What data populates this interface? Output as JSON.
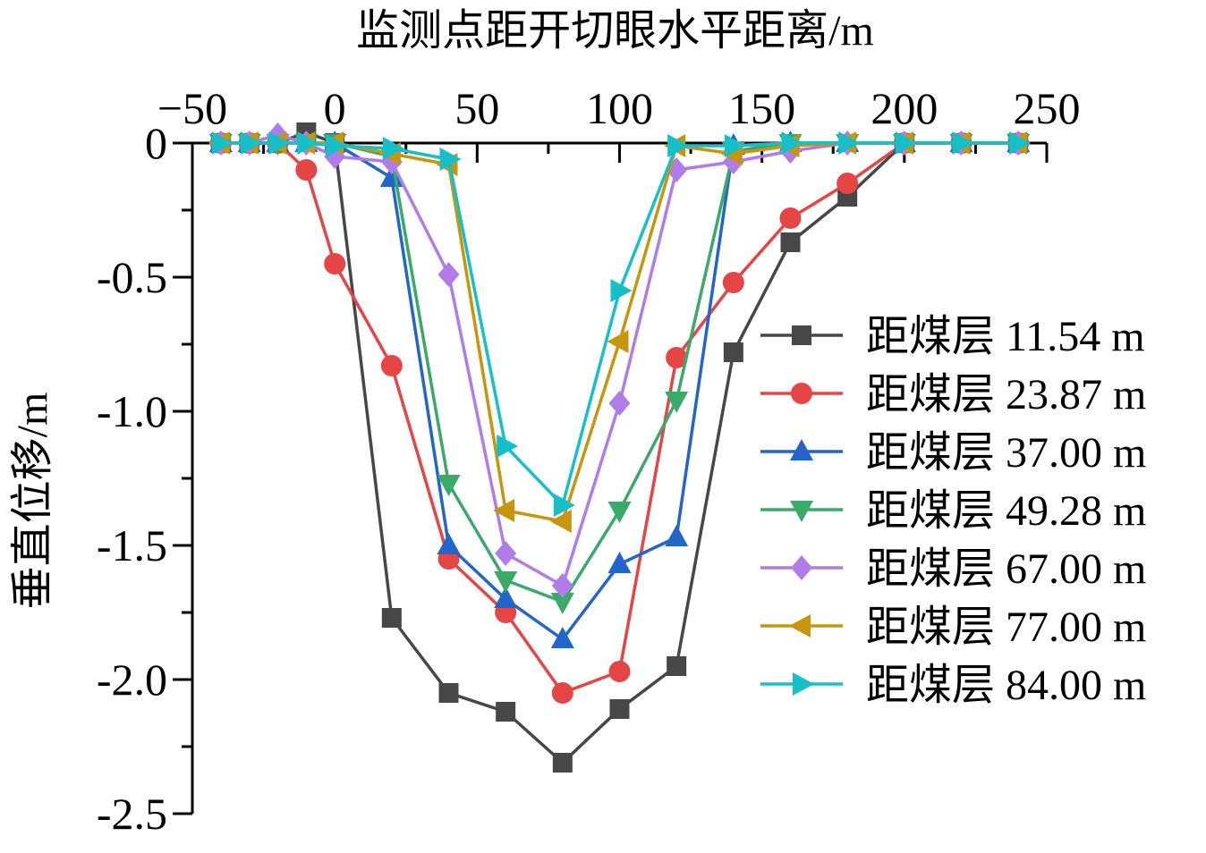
{
  "chart_data": {
    "type": "line",
    "xlabel": "监测点距开切眼水平距离/m",
    "ylabel": "垂直位移/m",
    "x_axis_position": "top",
    "xlim": [
      -50,
      250
    ],
    "ylim": [
      -2.5,
      0
    ],
    "x_ticks": [
      -50,
      0,
      50,
      100,
      150,
      200,
      250
    ],
    "y_ticks": [
      0,
      -0.5,
      -1.0,
      -1.5,
      -2.0,
      -2.5
    ],
    "x_tick_labels": [
      "−50",
      "0",
      "50",
      "100",
      "150",
      "200",
      "250"
    ],
    "y_tick_labels": [
      "0",
      "-0.5",
      "-1.0",
      "-1.5",
      "-2.0",
      "-2.5"
    ],
    "legend_position": "right",
    "grid": false,
    "series": [
      {
        "name": "距煤层 11.54 m",
        "color": "#474747",
        "marker": "square",
        "points": [
          [
            -40,
            0
          ],
          [
            -30,
            0
          ],
          [
            -20,
            0
          ],
          [
            -10,
            0.04
          ],
          [
            0,
            0
          ],
          [
            20,
            -1.77
          ],
          [
            40,
            -2.05
          ],
          [
            60,
            -2.12
          ],
          [
            80,
            -2.31
          ],
          [
            100,
            -2.11
          ],
          [
            120,
            -1.95
          ],
          [
            140,
            -0.78
          ],
          [
            160,
            -0.37
          ],
          [
            180,
            -0.2
          ],
          [
            200,
            0
          ],
          [
            220,
            0
          ],
          [
            240,
            0
          ]
        ]
      },
      {
        "name": "距煤层 23.87 m",
        "color": "#e64545",
        "marker": "circle",
        "points": [
          [
            -40,
            0
          ],
          [
            -30,
            0
          ],
          [
            -20,
            0
          ],
          [
            -10,
            -0.1
          ],
          [
            0,
            -0.45
          ],
          [
            20,
            -0.83
          ],
          [
            40,
            -1.55
          ],
          [
            60,
            -1.75
          ],
          [
            80,
            -2.05
          ],
          [
            100,
            -1.97
          ],
          [
            120,
            -0.8
          ],
          [
            140,
            -0.52
          ],
          [
            160,
            -0.28
          ],
          [
            180,
            -0.15
          ],
          [
            200,
            0
          ],
          [
            220,
            0
          ],
          [
            240,
            0
          ]
        ]
      },
      {
        "name": "距煤层 37.00 m",
        "color": "#2266cc",
        "marker": "triangle-up",
        "points": [
          [
            -40,
            0
          ],
          [
            -30,
            0
          ],
          [
            -20,
            0
          ],
          [
            -10,
            0
          ],
          [
            0,
            0
          ],
          [
            20,
            -0.13
          ],
          [
            40,
            -1.5
          ],
          [
            60,
            -1.7
          ],
          [
            80,
            -1.85
          ],
          [
            100,
            -1.57
          ],
          [
            120,
            -1.47
          ],
          [
            140,
            -0.01
          ],
          [
            160,
            0
          ],
          [
            180,
            0
          ],
          [
            200,
            0
          ],
          [
            220,
            0
          ],
          [
            240,
            0
          ]
        ]
      },
      {
        "name": "距煤层 49.28 m",
        "color": "#3aaa6a",
        "marker": "triangle-down",
        "points": [
          [
            -40,
            0
          ],
          [
            -30,
            0
          ],
          [
            -20,
            0
          ],
          [
            -10,
            0
          ],
          [
            0,
            0
          ],
          [
            20,
            -0.05
          ],
          [
            40,
            -1.27
          ],
          [
            60,
            -1.63
          ],
          [
            80,
            -1.71
          ],
          [
            100,
            -1.37
          ],
          [
            120,
            -0.96
          ],
          [
            140,
            -0.03
          ],
          [
            160,
            0
          ],
          [
            180,
            0
          ],
          [
            200,
            0
          ],
          [
            220,
            0
          ],
          [
            240,
            0
          ]
        ]
      },
      {
        "name": "距煤层 67.00 m",
        "color": "#b07de8",
        "marker": "diamond",
        "points": [
          [
            -40,
            0
          ],
          [
            -30,
            0
          ],
          [
            -20,
            0.03
          ],
          [
            -10,
            0
          ],
          [
            0,
            -0.05
          ],
          [
            20,
            -0.07
          ],
          [
            40,
            -0.49
          ],
          [
            60,
            -1.53
          ],
          [
            80,
            -1.65
          ],
          [
            100,
            -0.97
          ],
          [
            120,
            -0.1
          ],
          [
            140,
            -0.07
          ],
          [
            160,
            -0.03
          ],
          [
            180,
            0
          ],
          [
            200,
            0
          ],
          [
            220,
            0
          ],
          [
            240,
            0
          ]
        ]
      },
      {
        "name": "距煤层 77.00 m",
        "color": "#c8960c",
        "marker": "triangle-left",
        "points": [
          [
            -40,
            0
          ],
          [
            -30,
            0
          ],
          [
            -20,
            0
          ],
          [
            -10,
            0
          ],
          [
            0,
            0
          ],
          [
            20,
            -0.04
          ],
          [
            40,
            -0.08
          ],
          [
            60,
            -1.37
          ],
          [
            80,
            -1.41
          ],
          [
            100,
            -0.74
          ],
          [
            120,
            -0.01
          ],
          [
            140,
            -0.04
          ],
          [
            160,
            -0.01
          ],
          [
            180,
            0
          ],
          [
            200,
            0
          ],
          [
            220,
            0
          ],
          [
            240,
            0
          ]
        ]
      },
      {
        "name": "距煤层 84.00 m",
        "color": "#17c0c8",
        "marker": "triangle-right",
        "points": [
          [
            -40,
            0
          ],
          [
            -30,
            0
          ],
          [
            -20,
            0
          ],
          [
            -10,
            0
          ],
          [
            0,
            -0.01
          ],
          [
            20,
            -0.02
          ],
          [
            40,
            -0.06
          ],
          [
            60,
            -1.13
          ],
          [
            80,
            -1.35
          ],
          [
            100,
            -0.55
          ],
          [
            120,
            -0.01
          ],
          [
            140,
            -0.01
          ],
          [
            160,
            0
          ],
          [
            180,
            0
          ],
          [
            200,
            0
          ],
          [
            220,
            0
          ],
          [
            240,
            0
          ]
        ]
      }
    ]
  }
}
